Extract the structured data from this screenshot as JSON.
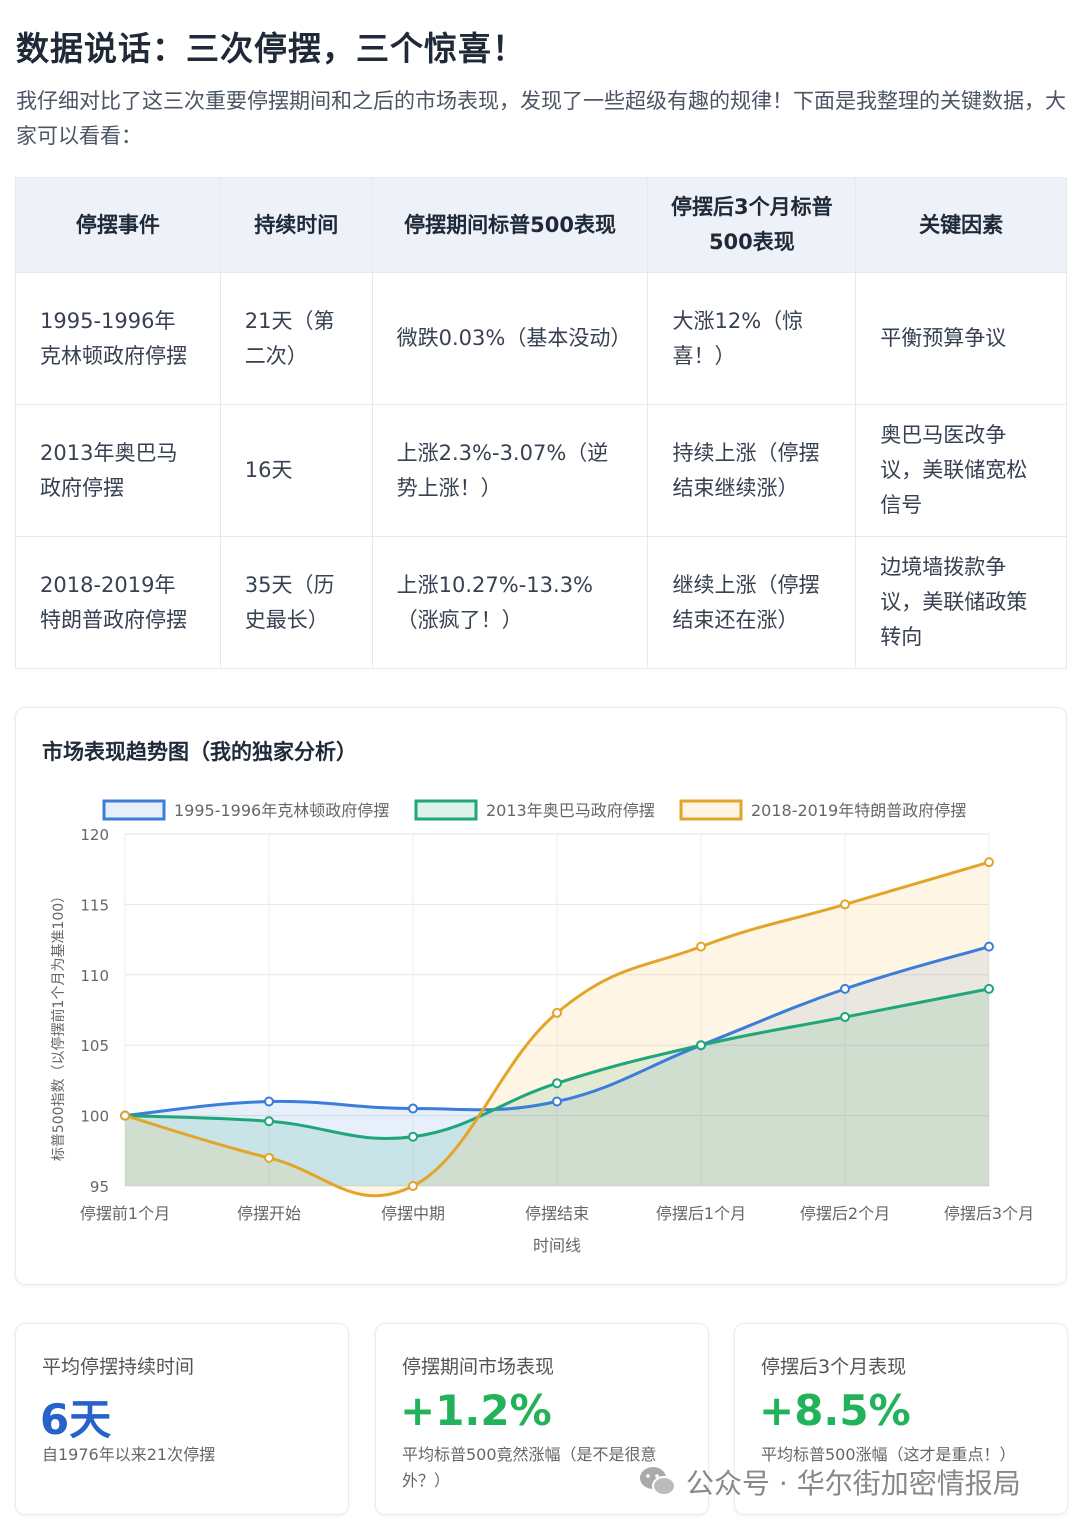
{
  "title": "数据说话：三次停摆，三个惊喜！",
  "intro": "我仔细对比了这三次重要停摆期间和之后的市场表现，发现了一些超级有趣的规律！下面是我整理的关键数据，大家可以看看：",
  "table": {
    "headers": [
      "停摆事件",
      "持续时间",
      "停摆期间标普500表现",
      "停摆后3个月标普500表现",
      "关键因素"
    ],
    "rows": [
      [
        "1995-1996年克林顿政府停摆",
        "21天（第二次）",
        "微跌0.03%（基本没动）",
        "大涨12%（惊喜！）",
        "平衡预算争议"
      ],
      [
        "2013年奥巴马政府停摆",
        "16天",
        "上涨2.3%-3.07%（逆势上涨！）",
        "持续上涨（停摆结束继续涨）",
        "奥巴马医改争议，美联储宽松信号"
      ],
      [
        "2018-2019年特朗普政府停摆",
        "35天（历史最长）",
        "上涨10.27%-13.3%（涨疯了！）",
        "继续上涨（停摆结束还在涨）",
        "边境墙拨款争议，美联储政策转向"
      ]
    ]
  },
  "chart_data": {
    "type": "line",
    "title": "市场表现趋势图（我的独家分析）",
    "xlabel": "时间线",
    "ylabel": "标普500指数（以停摆前1个月为基准100）",
    "categories": [
      "停摆前1个月",
      "停摆开始",
      "停摆中期",
      "停摆结束",
      "停摆后1个月",
      "停摆后2个月",
      "停摆后3个月"
    ],
    "ylim": [
      95,
      120
    ],
    "yticks": [
      95,
      100,
      105,
      110,
      115,
      120
    ],
    "grid": true,
    "legend": "top",
    "series": [
      {
        "name": "1995-1996年克林顿政府停摆",
        "color": "#3b7dd8",
        "fill": "rgba(59,125,216,0.12)",
        "values": [
          100,
          101,
          100.5,
          101,
          105,
          109,
          112
        ]
      },
      {
        "name": "2013年奥巴马政府停摆",
        "color": "#1fa67a",
        "fill": "rgba(31,166,122,0.15)",
        "values": [
          100,
          99.6,
          98.5,
          102.3,
          105,
          107,
          109
        ]
      },
      {
        "name": "2018-2019年特朗普政府停摆",
        "color": "#e2a52a",
        "fill": "rgba(245,190,80,0.15)",
        "values": [
          100,
          97,
          95,
          107.3,
          112,
          115,
          118
        ]
      }
    ]
  },
  "stats": [
    {
      "label": "平均停摆持续时间",
      "value": "6天",
      "note": "自1976年以来21次停摆",
      "color": "#2563c9"
    },
    {
      "label": "停摆期间市场表现",
      "value": "+1.2%",
      "note": "平均标普500竟然涨幅（是不是很意外？）",
      "color": "#22b35a"
    },
    {
      "label": "停摆后3个月表现",
      "value": "+8.5%",
      "note": "平均标普500涨幅（这才是重点！）",
      "color": "#22b35a"
    }
  ],
  "watermark": "公众号 · 华尔街加密情报局"
}
